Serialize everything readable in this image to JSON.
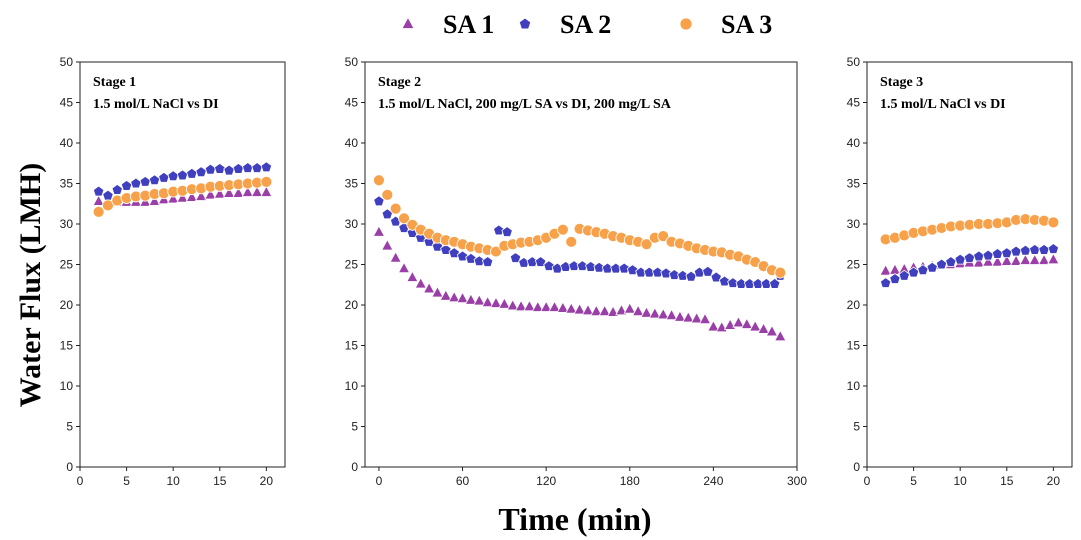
{
  "legend": [
    {
      "name": "SA 1",
      "color": "#9B3FA8",
      "marker": "triangle"
    },
    {
      "name": "SA 2",
      "color": "#3F3FBF",
      "marker": "pentagon"
    },
    {
      "name": "SA 3",
      "color": "#F7A24A",
      "marker": "circle"
    }
  ],
  "ylabel": "Water Flux (LMH)",
  "xlabel": "Time (min)",
  "chart_data": [
    {
      "type": "scatter",
      "title_lines": [
        "Stage 1",
        "1.5 mol/L NaCl   vs   DI"
      ],
      "xlim": [
        0,
        22
      ],
      "ylim": [
        0,
        50
      ],
      "xticks": [
        0,
        5,
        10,
        15,
        20
      ],
      "yticks": [
        0,
        5,
        10,
        15,
        20,
        25,
        30,
        35,
        40,
        45,
        50
      ],
      "series": [
        {
          "name": "SA 1",
          "x": [
            2,
            3,
            4,
            5,
            6,
            7,
            8,
            9,
            10,
            11,
            12,
            13,
            14,
            15,
            16,
            17,
            18,
            19,
            20
          ],
          "y": [
            32.8,
            32.8,
            32.7,
            32.7,
            32.7,
            32.7,
            32.8,
            33.0,
            33.1,
            33.2,
            33.3,
            33.4,
            33.6,
            33.7,
            33.8,
            33.8,
            33.9,
            33.9,
            33.9
          ]
        },
        {
          "name": "SA 2",
          "x": [
            2,
            3,
            4,
            5,
            6,
            7,
            8,
            9,
            10,
            11,
            12,
            13,
            14,
            15,
            16,
            17,
            18,
            19,
            20
          ],
          "y": [
            34.0,
            33.5,
            34.2,
            34.7,
            35.0,
            35.2,
            35.4,
            35.7,
            35.9,
            36.0,
            36.2,
            36.4,
            36.7,
            36.8,
            36.6,
            36.8,
            36.9,
            36.9,
            37.0
          ]
        },
        {
          "name": "SA 3",
          "x": [
            2,
            3,
            4,
            5,
            6,
            7,
            8,
            9,
            10,
            11,
            12,
            13,
            14,
            15,
            16,
            17,
            18,
            19,
            20
          ],
          "y": [
            31.5,
            32.3,
            32.9,
            33.2,
            33.4,
            33.5,
            33.7,
            33.8,
            34.0,
            34.1,
            34.3,
            34.4,
            34.6,
            34.7,
            34.8,
            34.9,
            35.0,
            35.1,
            35.2
          ]
        }
      ]
    },
    {
      "type": "scatter",
      "title_lines": [
        "Stage 2",
        "1.5 mol/L NaCl, 200 mg/L SA   vs   DI, 200 mg/L SA"
      ],
      "xlim": [
        -10,
        300
      ],
      "ylim": [
        0,
        50
      ],
      "xticks": [
        0,
        60,
        120,
        180,
        240,
        300
      ],
      "yticks": [
        0,
        5,
        10,
        15,
        20,
        25,
        30,
        35,
        40,
        45,
        50
      ],
      "series": [
        {
          "name": "SA 1",
          "x": [
            0,
            6,
            12,
            18,
            24,
            30,
            36,
            42,
            48,
            54,
            60,
            66,
            72,
            78,
            84,
            90,
            96,
            102,
            108,
            114,
            120,
            126,
            132,
            138,
            144,
            150,
            156,
            162,
            168,
            174,
            180,
            186,
            192,
            198,
            204,
            210,
            216,
            222,
            228,
            234,
            240,
            246,
            252,
            258,
            264,
            270,
            276,
            282,
            288
          ],
          "y": [
            29.0,
            27.3,
            25.8,
            24.5,
            23.4,
            22.6,
            22.0,
            21.5,
            21.1,
            20.9,
            20.8,
            20.6,
            20.5,
            20.3,
            20.2,
            20.1,
            19.9,
            19.8,
            19.8,
            19.7,
            19.7,
            19.7,
            19.6,
            19.5,
            19.4,
            19.3,
            19.2,
            19.2,
            19.1,
            19.3,
            19.5,
            19.2,
            19.0,
            18.9,
            18.8,
            18.7,
            18.5,
            18.4,
            18.3,
            18.2,
            17.3,
            17.2,
            17.5,
            17.8,
            17.6,
            17.3,
            17.0,
            16.7,
            16.1
          ]
        },
        {
          "name": "SA 2",
          "x": [
            0,
            6,
            12,
            18,
            24,
            30,
            36,
            42,
            48,
            54,
            60,
            66,
            72,
            78,
            86,
            92,
            98,
            104,
            110,
            116,
            122,
            128,
            134,
            140,
            146,
            152,
            158,
            164,
            170,
            176,
            182,
            188,
            194,
            200,
            206,
            212,
            218,
            224,
            230,
            236,
            242,
            248,
            254,
            260,
            266,
            272,
            278,
            284,
            288
          ],
          "y": [
            32.8,
            31.2,
            30.3,
            29.5,
            28.9,
            28.3,
            27.8,
            27.2,
            26.8,
            26.4,
            26.0,
            25.7,
            25.4,
            25.3,
            29.2,
            29.0,
            25.8,
            25.2,
            25.3,
            25.3,
            24.8,
            24.5,
            24.7,
            24.8,
            24.8,
            24.7,
            24.6,
            24.5,
            24.5,
            24.5,
            24.3,
            24.0,
            24.0,
            24.0,
            23.9,
            23.7,
            23.6,
            23.5,
            24.0,
            24.1,
            23.4,
            22.9,
            22.7,
            22.6,
            22.6,
            22.6,
            22.6,
            22.6,
            23.6
          ]
        },
        {
          "name": "SA 3",
          "x": [
            0,
            6,
            12,
            18,
            24,
            30,
            36,
            42,
            48,
            54,
            60,
            66,
            72,
            78,
            84,
            90,
            96,
            102,
            108,
            114,
            120,
            126,
            132,
            138,
            144,
            150,
            156,
            162,
            168,
            174,
            180,
            186,
            192,
            198,
            204,
            210,
            216,
            222,
            228,
            234,
            240,
            246,
            252,
            258,
            264,
            270,
            276,
            282,
            288
          ],
          "y": [
            35.4,
            33.6,
            31.9,
            30.7,
            29.9,
            29.3,
            28.8,
            28.3,
            28.0,
            27.8,
            27.5,
            27.2,
            27.0,
            26.8,
            26.6,
            27.3,
            27.5,
            27.7,
            27.8,
            28.0,
            28.3,
            28.8,
            29.3,
            27.8,
            29.4,
            29.2,
            29.0,
            28.8,
            28.5,
            28.3,
            28.0,
            27.8,
            27.5,
            28.3,
            28.5,
            27.8,
            27.6,
            27.3,
            27.0,
            26.8,
            26.6,
            26.5,
            26.2,
            26.0,
            25.6,
            25.3,
            24.8,
            24.3,
            24.0
          ]
        }
      ]
    },
    {
      "type": "scatter",
      "title_lines": [
        "Stage 3",
        "1.5 mol/L NaCl   vs   DI"
      ],
      "xlim": [
        0,
        22
      ],
      "ylim": [
        0,
        50
      ],
      "xticks": [
        0,
        5,
        10,
        15,
        20
      ],
      "yticks": [
        0,
        5,
        10,
        15,
        20,
        25,
        30,
        35,
        40,
        45,
        50
      ],
      "series": [
        {
          "name": "SA 1",
          "x": [
            2,
            3,
            4,
            5,
            6,
            7,
            8,
            9,
            10,
            11,
            12,
            13,
            14,
            15,
            16,
            17,
            18,
            19,
            20
          ],
          "y": [
            24.2,
            24.3,
            24.4,
            24.6,
            24.7,
            24.8,
            24.9,
            25.0,
            25.1,
            25.2,
            25.2,
            25.3,
            25.3,
            25.4,
            25.4,
            25.5,
            25.5,
            25.5,
            25.6
          ]
        },
        {
          "name": "SA 2",
          "x": [
            2,
            3,
            4,
            5,
            6,
            7,
            8,
            9,
            10,
            11,
            12,
            13,
            14,
            15,
            16,
            17,
            18,
            19,
            20
          ],
          "y": [
            22.7,
            23.2,
            23.6,
            24.0,
            24.3,
            24.6,
            25.0,
            25.3,
            25.6,
            25.8,
            26.0,
            26.1,
            26.3,
            26.4,
            26.6,
            26.7,
            26.8,
            26.8,
            26.9
          ]
        },
        {
          "name": "SA 3",
          "x": [
            2,
            3,
            4,
            5,
            6,
            7,
            8,
            9,
            10,
            11,
            12,
            13,
            14,
            15,
            16,
            17,
            18,
            19,
            20
          ],
          "y": [
            28.1,
            28.3,
            28.6,
            28.9,
            29.1,
            29.3,
            29.5,
            29.7,
            29.8,
            29.9,
            30.0,
            30.0,
            30.1,
            30.2,
            30.5,
            30.6,
            30.5,
            30.4,
            30.2
          ]
        }
      ]
    }
  ]
}
